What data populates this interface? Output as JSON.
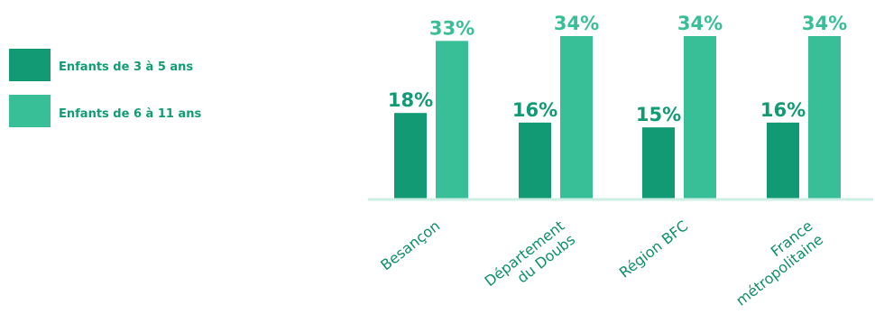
{
  "legend": [
    {
      "label": "Enfants de 3 à 5 ans",
      "color": "#129a74"
    },
    {
      "label": "Enfants de 6 à 11 ans",
      "color": "#38bf98"
    }
  ],
  "colors": {
    "axis": "#cdeee2",
    "category_text": "#0e8f6b",
    "legend_text": "#119c74"
  },
  "chart_data": {
    "type": "bar",
    "categories": [
      [
        "Besançon"
      ],
      [
        "Département",
        "du Doubs"
      ],
      [
        "Région BFC"
      ],
      [
        "France",
        "métropolitaine"
      ]
    ],
    "series": [
      {
        "name": "Enfants de 3 à 5 ans",
        "values": [
          18,
          16,
          15,
          16
        ],
        "labels": [
          "18%",
          "16%",
          "15%",
          "16%"
        ]
      },
      {
        "name": "Enfants de 6 à 11 ans",
        "values": [
          33,
          34,
          34,
          34
        ],
        "labels": [
          "33%",
          "34%",
          "34%",
          "34%"
        ]
      }
    ],
    "ylim": [
      0,
      34
    ],
    "grid": false,
    "legend_position": "left"
  }
}
